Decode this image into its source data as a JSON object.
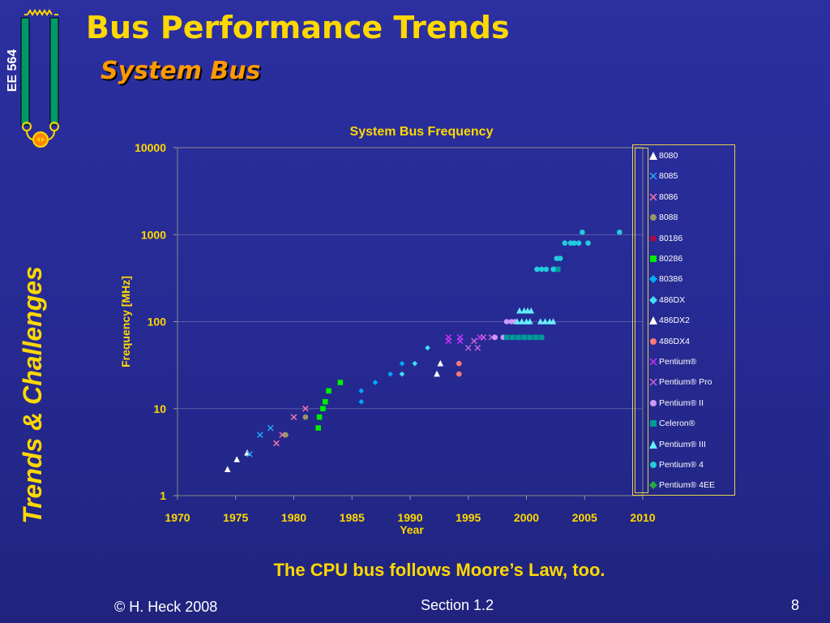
{
  "slide": {
    "title": "Bus Performance Trends",
    "subtitle": "System Bus",
    "course_label": "EE 564",
    "side_label": "Trends & Challenges",
    "caption": "The CPU bus follows Moore’s Law, too.",
    "footer_left": "© H. Heck 2008",
    "footer_center": "Section 1.2",
    "page_number": "8",
    "logo_icon": "resistor-chip-icon",
    "colors": {
      "background": "#262a92",
      "title": "#ffd800",
      "subtitle": "#ff9900",
      "text": "#ffffff",
      "legend_border": "#e6d34a"
    }
  },
  "chart_data": {
    "type": "scatter",
    "title": "System Bus Frequency",
    "xlabel": "Year",
    "ylabel": "Frequency [MHz]",
    "xlim": [
      1970,
      2010
    ],
    "ylim": [
      1,
      10000
    ],
    "y_scale": "log",
    "x_ticks": [
      "1970",
      "1975",
      "1980",
      "1985",
      "1990",
      "1995",
      "2000",
      "2005",
      "2010"
    ],
    "y_ticks": [
      "1",
      "10",
      "100",
      "1000",
      "10000"
    ],
    "grid": "horizontal",
    "legend_position": "right",
    "series": [
      {
        "name": "8080",
        "marker": "triangle",
        "color": "#ffffff",
        "points": [
          [
            1974.3,
            2
          ],
          [
            1975.1,
            2.6
          ],
          [
            1976,
            3.1
          ]
        ]
      },
      {
        "name": "8085",
        "marker": "x",
        "color": "#22aaff",
        "points": [
          [
            1976.2,
            3
          ],
          [
            1977.1,
            5
          ],
          [
            1978,
            6
          ]
        ]
      },
      {
        "name": "8086",
        "marker": "x",
        "color": "#ff77aa",
        "points": [
          [
            1978.5,
            4
          ],
          [
            1979,
            5
          ],
          [
            1980,
            8
          ],
          [
            1981,
            10
          ]
        ]
      },
      {
        "name": "8088",
        "marker": "circle",
        "color": "#999966",
        "points": [
          [
            1979.3,
            5
          ],
          [
            1981,
            8
          ]
        ]
      },
      {
        "name": "80186",
        "marker": "star",
        "color": "#cc0033",
        "points": []
      },
      {
        "name": "80286",
        "marker": "square",
        "color": "#00ee00",
        "points": [
          [
            1982.1,
            6
          ],
          [
            1982.2,
            8
          ],
          [
            1982.5,
            10
          ],
          [
            1982.7,
            12
          ],
          [
            1983,
            16
          ],
          [
            1984,
            20
          ]
        ]
      },
      {
        "name": "80386",
        "marker": "diamond",
        "color": "#00aaff",
        "points": [
          [
            1985.8,
            12
          ],
          [
            1985.8,
            16
          ],
          [
            1987,
            20
          ],
          [
            1988.3,
            25
          ],
          [
            1989.3,
            33
          ]
        ]
      },
      {
        "name": "486DX",
        "marker": "diamond",
        "color": "#44ddff",
        "points": [
          [
            1989.3,
            25
          ],
          [
            1990.4,
            33
          ],
          [
            1991.5,
            50
          ]
        ]
      },
      {
        "name": "486DX2",
        "marker": "triangle",
        "color": "#ffffff",
        "points": [
          [
            1992.3,
            25
          ],
          [
            1992.6,
            33
          ]
        ]
      },
      {
        "name": "486DX4",
        "marker": "circle",
        "color": "#ff7777",
        "points": [
          [
            1994.2,
            25
          ],
          [
            1994.2,
            33
          ]
        ]
      },
      {
        "name": "Pentium®",
        "marker": "x",
        "color": "#cc33ff",
        "points": [
          [
            1993.3,
            60
          ],
          [
            1993.3,
            66
          ],
          [
            1994.3,
            60
          ],
          [
            1994.3,
            66
          ],
          [
            1995.5,
            60
          ],
          [
            1996,
            66
          ]
        ]
      },
      {
        "name": "Pentium® Pro",
        "marker": "x",
        "color": "#cc66dd",
        "points": [
          [
            1995,
            50
          ],
          [
            1995.8,
            50
          ],
          [
            1995.5,
            60
          ],
          [
            1996.3,
            66
          ],
          [
            1997,
            66
          ]
        ]
      },
      {
        "name": "Pentium® II",
        "marker": "circle",
        "color": "#cc99ff",
        "points": [
          [
            1997.3,
            66
          ],
          [
            1998,
            66
          ],
          [
            1998.3,
            100
          ],
          [
            1998.7,
            100
          ],
          [
            1999,
            100
          ]
        ]
      },
      {
        "name": "Celeron®",
        "marker": "square",
        "color": "#009999",
        "points": [
          [
            1998.3,
            66
          ],
          [
            1998.8,
            66
          ],
          [
            1999.3,
            66
          ],
          [
            1999.8,
            66
          ],
          [
            2000.3,
            66
          ],
          [
            2000.8,
            66
          ],
          [
            2001.3,
            66
          ],
          [
            2002.5,
            400
          ],
          [
            2002.7,
            400
          ]
        ]
      },
      {
        "name": "Pentium® III",
        "marker": "triangle",
        "color": "#66eeff",
        "points": [
          [
            1999.2,
            100
          ],
          [
            1999.6,
            100
          ],
          [
            2000,
            100
          ],
          [
            2000.3,
            100
          ],
          [
            1999.4,
            133
          ],
          [
            1999.8,
            133
          ],
          [
            2000.1,
            133
          ],
          [
            2000.4,
            133
          ],
          [
            2001.2,
            100
          ],
          [
            2001.6,
            100
          ],
          [
            2002,
            100
          ],
          [
            2002.3,
            100
          ]
        ]
      },
      {
        "name": "Pentium® 4",
        "marker": "circle",
        "color": "#22ccdd",
        "points": [
          [
            2000.9,
            400
          ],
          [
            2001.3,
            400
          ],
          [
            2001.7,
            400
          ],
          [
            2002.3,
            400
          ],
          [
            2002.6,
            533
          ],
          [
            2002.9,
            533
          ],
          [
            2003.3,
            800
          ],
          [
            2003.8,
            800
          ],
          [
            2004.1,
            800
          ],
          [
            2004.5,
            800
          ],
          [
            2004.8,
            1066
          ],
          [
            2005.3,
            800
          ],
          [
            2008,
            1066
          ]
        ]
      },
      {
        "name": "Pentium® 4EE",
        "marker": "diamond",
        "color": "#22aa44",
        "points": []
      }
    ]
  }
}
